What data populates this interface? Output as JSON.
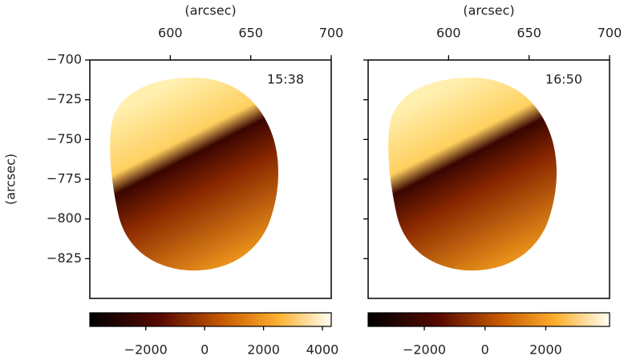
{
  "chart_data": [
    {
      "type": "image",
      "xlabel": "(arcsec)",
      "ylabel": "(arcsec)",
      "annotation": "15:38",
      "xlim": [
        550,
        700
      ],
      "xticks": [
        600,
        650,
        700
      ],
      "ylim": [
        -850,
        -700
      ],
      "yticks": [
        {
          "value": -700,
          "label": "−700"
        },
        {
          "value": -725,
          "label": "−725"
        },
        {
          "value": -750,
          "label": "−750"
        },
        {
          "value": -775,
          "label": "−775"
        },
        {
          "value": -800,
          "label": "−800"
        },
        {
          "value": -825,
          "label": "−825"
        }
      ],
      "show_ytick_labels": true,
      "colorbar_lim": [
        -3900,
        4300
      ],
      "colorbar_ticks": [
        {
          "value": -2000,
          "label": "−2000"
        },
        0,
        2000,
        4000
      ]
    },
    {
      "type": "image",
      "xlabel": "(arcsec)",
      "annotation": "16:50",
      "xlim": [
        550,
        700
      ],
      "xticks": [
        600,
        650,
        700
      ],
      "ylim": [
        -850,
        -700
      ],
      "yticks": [
        -700,
        -725,
        -750,
        -775,
        -800,
        -825
      ],
      "show_ytick_labels": false,
      "colorbar_lim": [
        -3850,
        4100
      ],
      "colorbar_ticks": [
        {
          "value": -2000,
          "label": "−2000"
        },
        0,
        2000
      ]
    }
  ]
}
